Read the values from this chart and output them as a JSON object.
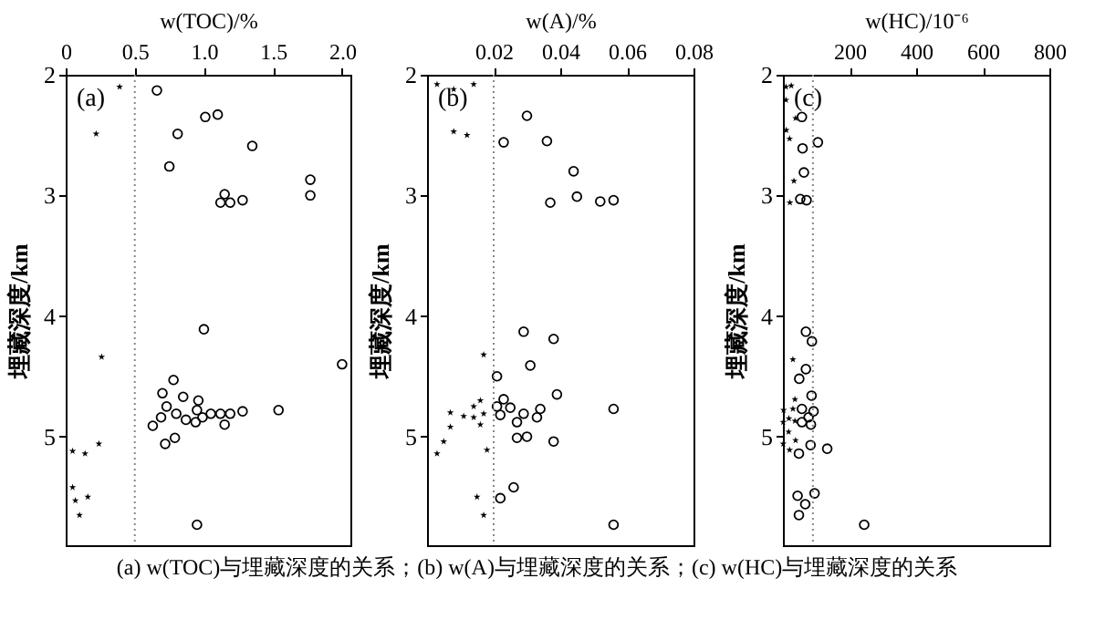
{
  "chart_data": [
    {
      "type": "scatter",
      "xlabel": "w(TOC)/%",
      "ylabel": "埋藏深度/km",
      "xlim": [
        0,
        2.06
      ],
      "xticks": [
        0,
        0.5,
        {
          "value": 1,
          "label": "1.0"
        },
        1.5,
        {
          "value": 2,
          "label": "2.0"
        }
      ],
      "ylim": [
        5.9,
        2
      ],
      "yticks": [
        2,
        3,
        4,
        5
      ],
      "series": [
        {
          "color": "#000000",
          "marker": "star",
          "x": [
            0.39,
            0.22,
            0.26,
            0.24,
            0.05,
            0.14,
            0.05,
            0.07,
            0.16,
            0.1
          ],
          "values": [
            2.1,
            2.49,
            4.34,
            5.06,
            5.12,
            5.14,
            5.42,
            5.53,
            5.5,
            5.65
          ]
        },
        {
          "color": "#000000",
          "marker": "circle",
          "x": [
            0.66,
            1.01,
            1.1,
            0.81,
            1.35,
            0.75,
            1.77,
            1.77,
            1.15,
            1.12,
            1.19,
            1.28,
            1.0,
            2.0,
            0.78,
            0.7,
            0.85,
            0.96,
            0.73,
            0.95,
            0.69,
            0.8,
            0.87,
            0.99,
            1.05,
            1.12,
            1.19,
            1.28,
            1.54,
            0.94,
            1.15,
            0.63,
            0.79,
            0.72,
            0.95
          ],
          "values": [
            2.13,
            2.35,
            2.33,
            2.49,
            2.59,
            2.76,
            2.87,
            3.0,
            2.99,
            3.06,
            3.06,
            3.04,
            4.11,
            4.4,
            4.53,
            4.64,
            4.67,
            4.7,
            4.75,
            4.78,
            4.84,
            4.81,
            4.86,
            4.84,
            4.81,
            4.81,
            4.81,
            4.79,
            4.78,
            4.88,
            4.9,
            4.91,
            5.01,
            5.06,
            5.73
          ]
        }
      ],
      "ref_lines": [
        {
          "axis": "x",
          "value": 0.5,
          "color": "#888888",
          "line_style": "dotted"
        }
      ],
      "annotations": [
        "(a)",
        "(a) w(TOC)与埋藏深度的关系；(b) w(A)与埋藏深度的关系；(c) w(HC)与埋藏深度的关系"
      ]
    },
    {
      "type": "scatter",
      "xlabel": "w(A)/%",
      "ylabel": "埋藏深度/km",
      "xlim": [
        0,
        0.08
      ],
      "xticks": [
        0.02,
        0.04,
        0.06,
        0.08
      ],
      "ylim": [
        5.9,
        2
      ],
      "yticks": [
        2,
        3,
        4,
        5
      ],
      "series": [
        {
          "color": "#000000",
          "marker": "star",
          "x": [
            0.003,
            0.008,
            0.014,
            0.008,
            0.012,
            0.017,
            0.016,
            0.014,
            0.007,
            0.011,
            0.014,
            0.017,
            0.007,
            0.016,
            0.005,
            0.003,
            0.018,
            0.015,
            0.017
          ],
          "values": [
            2.08,
            2.12,
            2.08,
            2.47,
            2.5,
            4.32,
            4.7,
            4.75,
            4.8,
            4.83,
            4.84,
            4.81,
            4.92,
            4.9,
            5.04,
            5.14,
            5.11,
            5.5,
            5.65
          ]
        },
        {
          "color": "#000000",
          "marker": "circle",
          "x": [
            0.03,
            0.036,
            0.023,
            0.044,
            0.045,
            0.037,
            0.052,
            0.056,
            0.029,
            0.038,
            0.031,
            0.021,
            0.039,
            0.023,
            0.021,
            0.025,
            0.034,
            0.056,
            0.022,
            0.029,
            0.033,
            0.027,
            0.03,
            0.027,
            0.038,
            0.026,
            0.022,
            0.056
          ],
          "values": [
            2.34,
            2.55,
            2.56,
            2.8,
            3.01,
            3.06,
            3.05,
            3.04,
            4.13,
            4.19,
            4.41,
            4.5,
            4.65,
            4.69,
            4.75,
            4.76,
            4.77,
            4.77,
            4.82,
            4.81,
            4.84,
            4.88,
            5.0,
            5.01,
            5.04,
            5.42,
            5.51,
            5.73
          ]
        }
      ],
      "ref_lines": [
        {
          "axis": "x",
          "value": 0.02,
          "color": "#888888",
          "line_style": "dotted"
        }
      ],
      "annotations": [
        "(b)"
      ]
    },
    {
      "type": "scatter",
      "xlabel": "w(HC)/10⁻⁶",
      "ylabel": "埋藏深度/km",
      "xlim": [
        0,
        800
      ],
      "xticks": [
        200,
        400,
        600,
        800
      ],
      "ylim": [
        5.9,
        2
      ],
      "yticks": [
        2,
        3,
        4,
        5
      ],
      "series": [
        {
          "color": "#000000",
          "marker": "star",
          "x": [
            9,
            25,
            9,
            38,
            10,
            20,
            33,
            21,
            30,
            36,
            2,
            30,
            1,
            18,
            36,
            17,
            1,
            38,
            20
          ],
          "values": [
            2.1,
            2.09,
            2.21,
            2.36,
            2.46,
            2.53,
            2.88,
            3.06,
            4.36,
            4.69,
            4.78,
            4.77,
            4.88,
            4.85,
            4.87,
            4.96,
            5.06,
            5.03,
            5.11
          ]
        },
        {
          "color": "#000000",
          "marker": "circle",
          "x": [
            57,
            105,
            59,
            63,
            52,
            71,
            69,
            87,
            69,
            49,
            86,
            57,
            92,
            77,
            84,
            57,
            83,
            133,
            48,
            44,
            95,
            67,
            48,
            244
          ],
          "values": [
            2.35,
            2.56,
            2.61,
            2.81,
            3.03,
            3.04,
            4.13,
            4.21,
            4.44,
            4.52,
            4.66,
            4.77,
            4.79,
            4.84,
            4.9,
            4.88,
            5.07,
            5.1,
            5.14,
            5.49,
            5.47,
            5.56,
            5.65,
            5.73
          ]
        }
      ],
      "ref_lines": [
        {
          "axis": "x",
          "value": 90,
          "color": "#888888",
          "line_style": "dotted"
        }
      ],
      "annotations": [
        "(c)"
      ]
    }
  ]
}
